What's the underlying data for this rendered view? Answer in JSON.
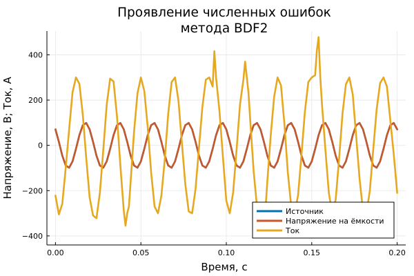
{
  "chart_data": {
    "type": "line",
    "title": [
      "Проявление численных ошибок",
      "метода BDF2"
    ],
    "xlabel": "Время, с",
    "ylabel": "Напряжение, В; Ток, А",
    "xlim": [
      -0.005,
      0.205
    ],
    "ylim": [
      -440,
      505
    ],
    "xticks": [
      0.0,
      0.05,
      0.1,
      0.15,
      0.2
    ],
    "xtick_labels": [
      "0.00",
      "0.05",
      "0.10",
      "0.15",
      "0.20"
    ],
    "yticks": [
      -400,
      -200,
      0,
      200,
      400
    ],
    "ytick_labels": [
      "−400",
      "−200",
      "0",
      "200",
      "400"
    ],
    "grid": true,
    "legend_position": "bottom-right",
    "source_freq_hz": 50,
    "source_amplitude": 100,
    "series": [
      {
        "name": "Источник",
        "color": "#0072b2",
        "x": [
          0,
          0.002,
          0.004,
          0.006,
          0.008,
          0.01,
          0.012,
          0.014,
          0.016,
          0.018,
          0.02,
          0.022,
          0.024,
          0.026,
          0.028,
          0.03,
          0.032,
          0.034,
          0.036,
          0.038,
          0.04,
          0.042,
          0.044,
          0.046,
          0.048,
          0.05,
          0.052,
          0.054,
          0.056,
          0.058,
          0.06,
          0.062,
          0.064,
          0.066,
          0.068,
          0.07,
          0.072,
          0.074,
          0.076,
          0.078,
          0.08,
          0.082,
          0.084,
          0.086,
          0.088,
          0.09,
          0.092,
          0.094,
          0.096,
          0.098,
          0.1,
          0.102,
          0.104,
          0.106,
          0.108,
          0.11,
          0.112,
          0.114,
          0.116,
          0.118,
          0.12,
          0.122,
          0.124,
          0.126,
          0.128,
          0.13,
          0.132,
          0.134,
          0.136,
          0.138,
          0.14,
          0.142,
          0.144,
          0.146,
          0.148,
          0.15,
          0.152,
          0.154,
          0.156,
          0.158,
          0.16,
          0.162,
          0.164,
          0.166,
          0.168,
          0.17,
          0.172,
          0.174,
          0.176,
          0.178,
          0.18,
          0.182,
          0.184,
          0.186,
          0.188,
          0.19,
          0.192,
          0.194,
          0.196,
          0.198,
          0.2
        ],
        "y": [
          70.7,
          15.6,
          -45.4,
          -89.1,
          -98.8,
          -70.7,
          -15.6,
          45.4,
          89.1,
          98.8,
          70.7,
          15.6,
          -45.4,
          -89.1,
          -98.8,
          -70.7,
          -15.6,
          45.4,
          89.1,
          98.8,
          70.7,
          15.6,
          -45.4,
          -89.1,
          -98.8,
          -70.7,
          -15.6,
          45.4,
          89.1,
          98.8,
          70.7,
          15.6,
          -45.4,
          -89.1,
          -98.8,
          -70.7,
          -15.6,
          45.4,
          89.1,
          98.8,
          70.7,
          15.6,
          -45.4,
          -89.1,
          -98.8,
          -70.7,
          -15.6,
          45.4,
          89.1,
          98.8,
          70.7,
          15.6,
          -45.4,
          -89.1,
          -98.8,
          -70.7,
          -15.6,
          45.4,
          89.1,
          98.8,
          70.7,
          15.6,
          -45.4,
          -89.1,
          -98.8,
          -70.7,
          -15.6,
          45.4,
          89.1,
          98.8,
          70.7,
          15.6,
          -45.4,
          -89.1,
          -98.8,
          -70.7,
          -15.6,
          45.4,
          89.1,
          98.8,
          70.7,
          15.6,
          -45.4,
          -89.1,
          -98.8,
          -70.7,
          -15.6,
          45.4,
          89.1,
          98.8,
          70.7,
          15.6,
          -45.4,
          -89.1,
          -98.8,
          -70.7,
          -15.6,
          45.4,
          89.1,
          98.8,
          70.7
        ]
      },
      {
        "name": "Напряжение на ёмкости",
        "color": "#c6582a",
        "x": [
          0,
          0.002,
          0.004,
          0.006,
          0.008,
          0.01,
          0.012,
          0.014,
          0.016,
          0.018,
          0.02,
          0.022,
          0.024,
          0.026,
          0.028,
          0.03,
          0.032,
          0.034,
          0.036,
          0.038,
          0.04,
          0.042,
          0.044,
          0.046,
          0.048,
          0.05,
          0.052,
          0.054,
          0.056,
          0.058,
          0.06,
          0.062,
          0.064,
          0.066,
          0.068,
          0.07,
          0.072,
          0.074,
          0.076,
          0.078,
          0.08,
          0.082,
          0.084,
          0.086,
          0.088,
          0.09,
          0.092,
          0.094,
          0.096,
          0.098,
          0.1,
          0.102,
          0.104,
          0.106,
          0.108,
          0.11,
          0.112,
          0.114,
          0.116,
          0.118,
          0.12,
          0.122,
          0.124,
          0.126,
          0.128,
          0.13,
          0.132,
          0.134,
          0.136,
          0.138,
          0.14,
          0.142,
          0.144,
          0.146,
          0.148,
          0.15,
          0.152,
          0.154,
          0.156,
          0.158,
          0.16,
          0.162,
          0.164,
          0.166,
          0.168,
          0.17,
          0.172,
          0.174,
          0.176,
          0.178,
          0.18,
          0.182,
          0.184,
          0.186,
          0.188,
          0.19,
          0.192,
          0.194,
          0.196,
          0.198,
          0.2
        ],
        "y": [
          70.7,
          15.6,
          -45.4,
          -89.1,
          -98.8,
          -70.7,
          -15.6,
          45.4,
          89.1,
          98.8,
          70.7,
          15.6,
          -45.4,
          -89.1,
          -98.8,
          -70.7,
          -15.6,
          45.4,
          89.1,
          98.8,
          70.7,
          15.6,
          -45.4,
          -89.1,
          -98.8,
          -70.7,
          -15.6,
          45.4,
          89.1,
          98.8,
          70.7,
          15.6,
          -45.4,
          -89.1,
          -98.8,
          -70.7,
          -15.6,
          45.4,
          89.1,
          98.8,
          70.7,
          15.6,
          -45.4,
          -89.1,
          -98.8,
          -70.7,
          -15.6,
          45.4,
          89.1,
          98.8,
          70.7,
          15.6,
          -45.4,
          -89.1,
          -98.8,
          -70.7,
          -15.6,
          45.4,
          89.1,
          98.8,
          70.7,
          15.6,
          -45.4,
          -89.1,
          -98.8,
          -70.7,
          -15.6,
          45.4,
          89.1,
          98.8,
          70.7,
          15.6,
          -45.4,
          -89.1,
          -98.8,
          -70.7,
          -15.6,
          45.4,
          89.1,
          98.8,
          70.7,
          15.6,
          -45.4,
          -89.1,
          -98.8,
          -70.7,
          -15.6,
          45.4,
          89.1,
          98.8,
          70.7,
          15.6,
          -45.4,
          -89.1,
          -98.8,
          -70.7,
          -15.6,
          45.4,
          89.1,
          98.8,
          70.7
        ]
      },
      {
        "name": "Ток",
        "color": "#e6a81e",
        "x": [
          0,
          0.002,
          0.004,
          0.006,
          0.008,
          0.01,
          0.012,
          0.014,
          0.016,
          0.018,
          0.02,
          0.022,
          0.024,
          0.026,
          0.028,
          0.03,
          0.032,
          0.034,
          0.036,
          0.038,
          0.039,
          0.04,
          0.041,
          0.042,
          0.043,
          0.044,
          0.046,
          0.048,
          0.05,
          0.052,
          0.054,
          0.056,
          0.058,
          0.06,
          0.062,
          0.064,
          0.066,
          0.068,
          0.07,
          0.072,
          0.074,
          0.076,
          0.078,
          0.08,
          0.082,
          0.084,
          0.086,
          0.088,
          0.09,
          0.092,
          0.093,
          0.094,
          0.096,
          0.098,
          0.1,
          0.102,
          0.104,
          0.106,
          0.108,
          0.11,
          0.111,
          0.112,
          0.113,
          0.114,
          0.116,
          0.118,
          0.12,
          0.122,
          0.124,
          0.126,
          0.128,
          0.13,
          0.132,
          0.134,
          0.136,
          0.138,
          0.14,
          0.142,
          0.144,
          0.146,
          0.148,
          0.15,
          0.152,
          0.153,
          0.154,
          0.155,
          0.156,
          0.158,
          0.16,
          0.162,
          0.164,
          0.166,
          0.168,
          0.17,
          0.172,
          0.174,
          0.176,
          0.178,
          0.18,
          0.182,
          0.184,
          0.186,
          0.188,
          0.19,
          0.192,
          0.194,
          0.196,
          0.198,
          0.2
        ],
        "y": [
          -222,
          -305,
          -258,
          -100,
          70,
          235,
          300,
          272,
          135,
          -55,
          -230,
          -310,
          -322,
          -210,
          -20,
          180,
          295,
          282,
          130,
          -90,
          -190,
          -290,
          -355,
          -300,
          -270,
          -160,
          60,
          230,
          300,
          240,
          80,
          -120,
          -270,
          -300,
          -222,
          -60,
          140,
          280,
          300,
          196,
          10,
          -172,
          -292,
          -300,
          -192,
          -10,
          170,
          290,
          300,
          260,
          416,
          300,
          150,
          -50,
          -245,
          -300,
          -208,
          -20,
          180,
          290,
          370,
          300,
          230,
          110,
          -115,
          -275,
          -300,
          -386,
          -160,
          45,
          215,
          300,
          265,
          95,
          -120,
          -270,
          -300,
          -220,
          -40,
          150,
          280,
          300,
          310,
          420,
          478,
          300,
          180,
          -20,
          -210,
          -300,
          -240,
          -60,
          140,
          270,
          300,
          225,
          40,
          -148,
          -290,
          -300,
          -200,
          -18,
          160,
          275,
          300,
          260,
          110,
          -40,
          -210
        ]
      }
    ]
  }
}
